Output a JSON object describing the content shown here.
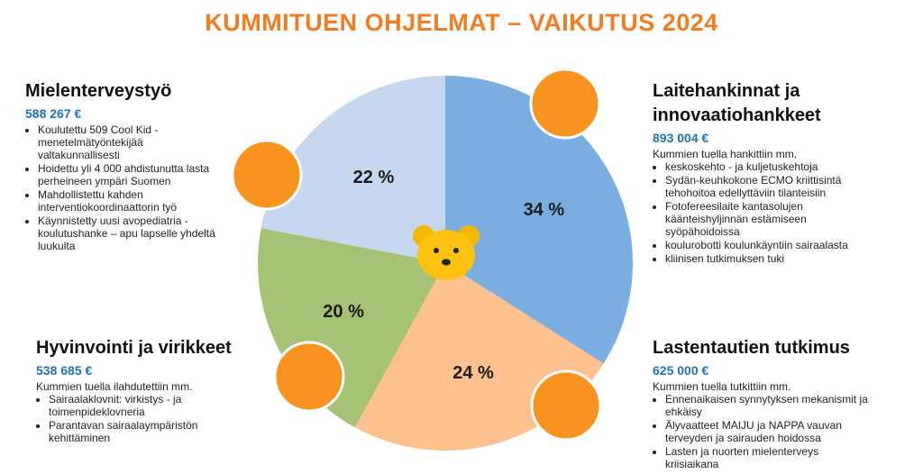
{
  "chart_data": {
    "type": "pie",
    "title": "KUMMITUEN OHJELMAT – VAIKUTUS 2024",
    "categories": [
      "Laitehankinnat ja innovaatiohankkeet",
      "Lastentautien tutkimus",
      "Hyvinvointi ja virikkeet",
      "Mielenterveystyö"
    ],
    "values": [
      34,
      24,
      20,
      22
    ],
    "value_labels": [
      "34 %",
      "24 %",
      "20 %",
      "22 %"
    ],
    "colors": [
      "#7aaee0",
      "#fcc18e",
      "#a5c275",
      "#c6d8ef"
    ]
  },
  "panels": [
    {
      "amount": "893 004 €",
      "intro": "Kummien tuella hankittiin mm.",
      "bullets": [
        "keskoskehto - ja kuljetuskehtoja",
        "Sydän-keuhkokone ECMO kriittisintä tehohoitoa edellyttäviin tilanteisiin",
        "Fotofereesilaite kantasolujen käänteishyljinnän estämiseen syöpähoidoissa",
        "koulurobotti koulunkäyntiin sairaalasta",
        "kliinisen tutkimuksen tuki"
      ]
    },
    {
      "amount": "625 000 €",
      "intro": "Kummien tuella tutkittiin mm.",
      "bullets": [
        "Ennenaikaisen synnytyksen mekanismit ja ehkäisy",
        "Älyvaatteet MAIJU ja NAPPA vauvan terveyden ja sairauden hoidossa",
        "Lasten ja nuorten mielenterveys kriisiaikana"
      ]
    },
    {
      "amount": "538 685 €",
      "intro": "Kummien tuella ilahdutettiin mm.",
      "bullets": [
        "Sairaalaklovnit: virkistys - ja toimenpideklovneria",
        "Parantavan sairaalaympäristön kehittäminen"
      ]
    },
    {
      "amount": "588 267 €",
      "bullets": [
        "Koulutettu 509 Cool Kid -menetelmätyöntekijää valtakunnallisesti",
        "Hoidettu yli 4 000 ahdistunutta lasta perheineen ympäri Suomen",
        "Mahdollistettu kahden interventiokoordinaattorin työ",
        "Käynnistetty uusi avopediatria -koulutushanke – apu lapselle yhdeltä luukulta"
      ]
    }
  ]
}
